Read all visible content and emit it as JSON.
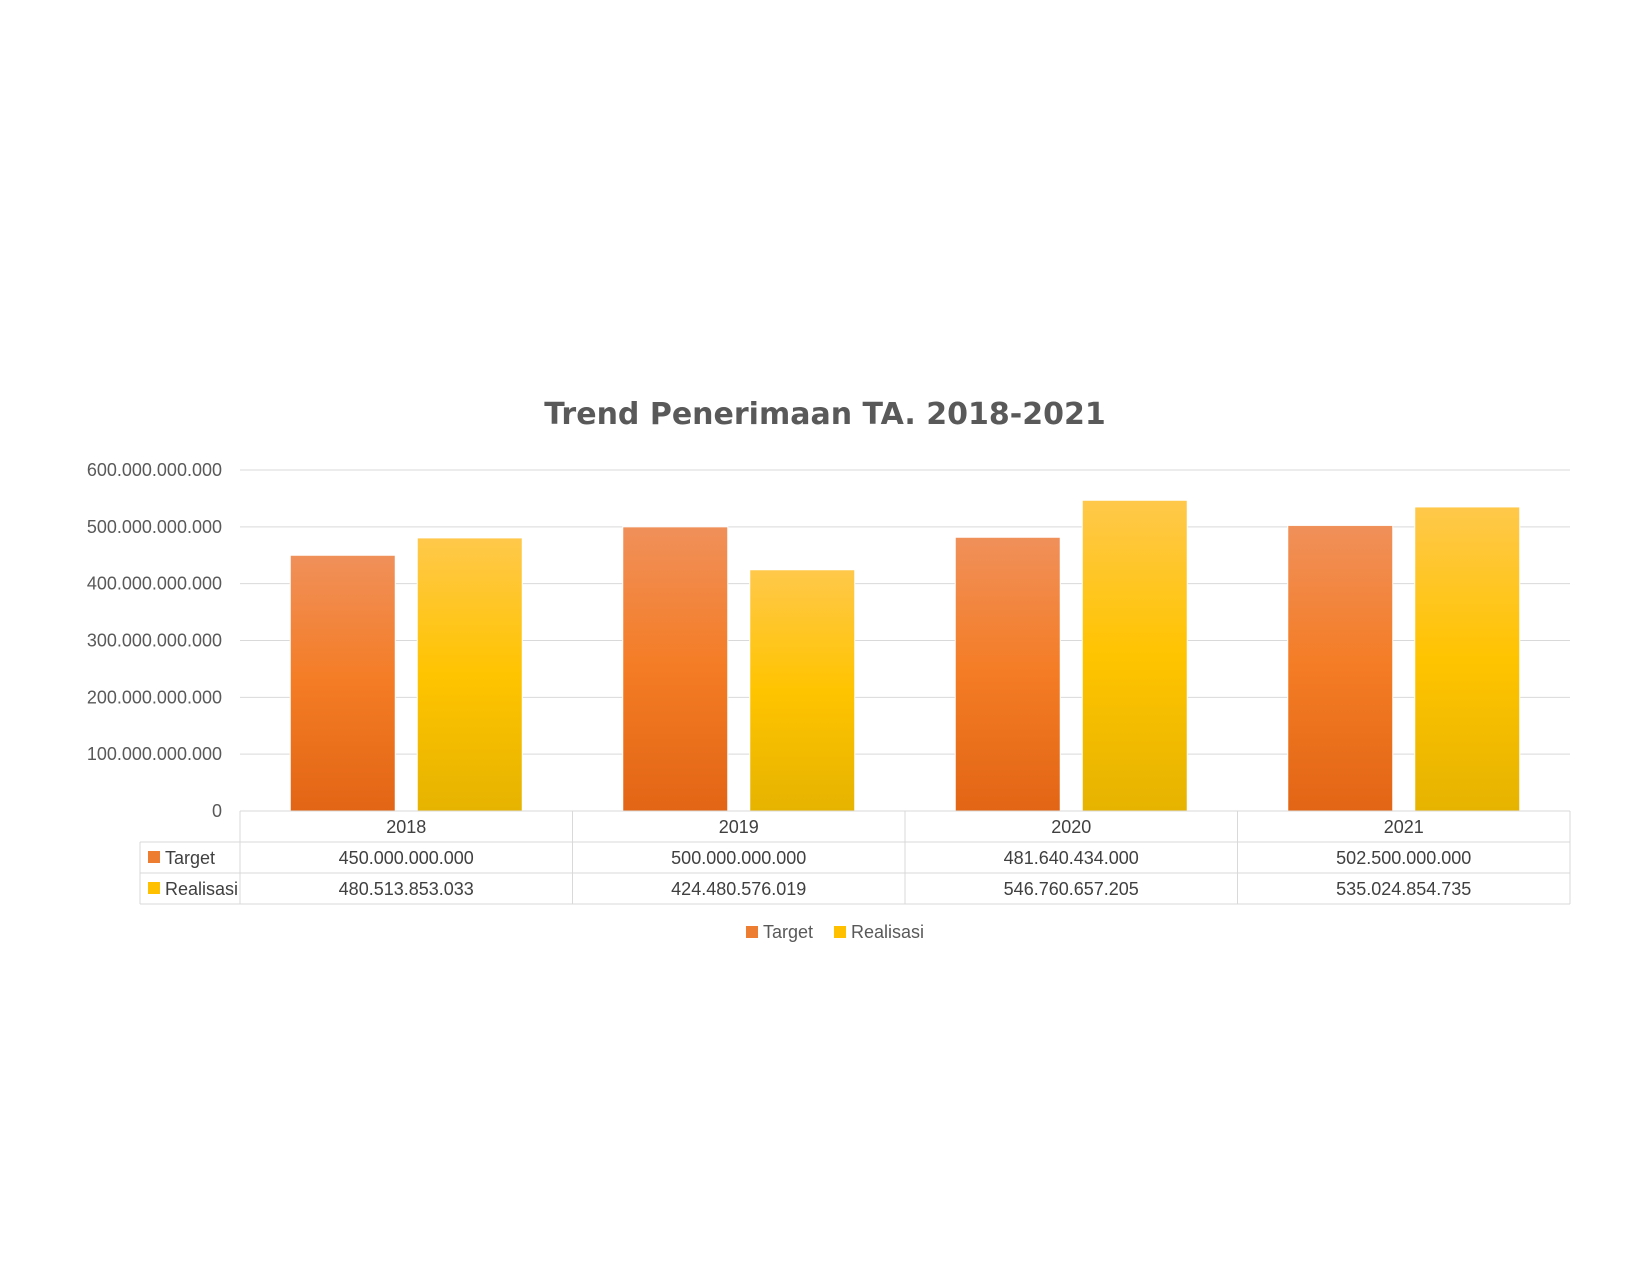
{
  "colors": {
    "target": "#ED7D31",
    "realisasi": "#FFC000",
    "grid": "#D9D9D9",
    "text": "#595959"
  },
  "chart_data": {
    "type": "bar",
    "title": "Trend Penerimaan TA. 2018-2021",
    "categories": [
      "2018",
      "2019",
      "2020",
      "2021"
    ],
    "series": [
      {
        "name": "Target",
        "values": [
          450000000000,
          500000000000,
          481640434000,
          502500000000
        ],
        "labels": [
          "450.000.000.000",
          "500.000.000.000",
          "481.640.434.000",
          "502.500.000.000"
        ]
      },
      {
        "name": "Realisasi",
        "values": [
          480513853033,
          424480576019,
          546760657205,
          535024854735
        ],
        "labels": [
          "480.513.853.033",
          "424.480.576.019",
          "546.760.657.205",
          "535.024.854.735"
        ]
      }
    ],
    "ylim": [
      0,
      600000000000
    ],
    "yticks": [
      0,
      100000000000,
      200000000000,
      300000000000,
      400000000000,
      500000000000,
      600000000000
    ],
    "ytick_labels": [
      "0",
      "100.000.000.000",
      "200.000.000.000",
      "300.000.000.000",
      "400.000.000.000",
      "500.000.000.000",
      "600.000.000.000"
    ],
    "grid": true,
    "data_table": true,
    "legend": "bottom"
  }
}
